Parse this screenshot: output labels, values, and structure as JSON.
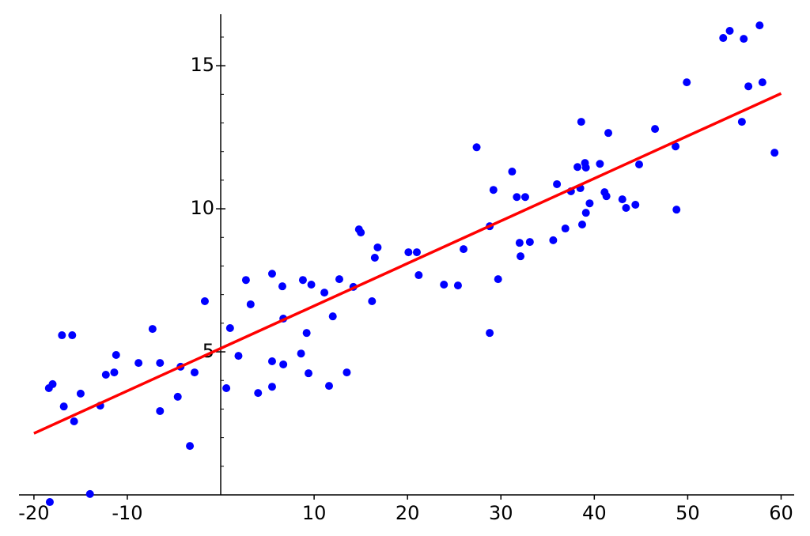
{
  "chart_data": {
    "type": "scatter",
    "xlim": [
      -21.6,
      61.4
    ],
    "ylim": [
      -0.6,
      16.8
    ],
    "xticks": [
      -20,
      -10,
      10,
      20,
      30,
      40,
      50,
      60
    ],
    "yticks": [
      5,
      10,
      15
    ],
    "y_minor_ticks": [
      1,
      2,
      3,
      4,
      6,
      7,
      8,
      9,
      11,
      12,
      13,
      14,
      16
    ],
    "points": {
      "color": "#0000ff",
      "x": [
        -18.4,
        -18.0,
        -17.0,
        -16.8,
        -15.9,
        -15.7,
        -15.0,
        -18.3,
        -14.0,
        -12.9,
        -12.3,
        -11.4,
        -11.2,
        -8.8,
        -7.3,
        -6.5,
        -6.5,
        -4.6,
        -4.3,
        -3.3,
        -2.8,
        -1.7,
        0.6,
        1.0,
        1.9,
        2.7,
        3.2,
        4.0,
        5.5,
        5.5,
        5.5,
        6.6,
        6.7,
        6.7,
        8.8,
        8.6,
        9.2,
        9.4,
        9.7,
        11.1,
        11.6,
        12.0,
        12.7,
        13.5,
        14.2,
        14.8,
        15.0,
        16.2,
        16.5,
        16.8,
        20.1,
        21.0,
        21.2,
        23.9,
        25.4,
        26.0,
        27.4,
        28.8,
        28.8,
        29.2,
        29.7,
        31.2,
        31.7,
        32.0,
        32.1,
        32.6,
        33.1,
        35.6,
        36.0,
        36.9,
        37.5,
        38.2,
        38.5,
        38.6,
        38.7,
        39.0,
        39.1,
        39.1,
        39.5,
        40.6,
        41.1,
        41.3,
        41.5,
        43.0,
        43.4,
        44.4,
        44.8,
        46.5,
        48.7,
        48.8,
        49.9,
        53.8,
        54.5,
        55.8,
        56.0,
        56.5,
        57.7,
        58.0,
        59.3
      ],
      "y": [
        3.73,
        3.87,
        5.58,
        3.09,
        5.58,
        2.57,
        3.54,
        -0.25,
        0.03,
        3.12,
        4.2,
        4.28,
        4.89,
        4.61,
        5.8,
        4.61,
        2.93,
        3.43,
        4.48,
        1.71,
        4.28,
        6.77,
        3.73,
        5.83,
        4.86,
        7.51,
        6.66,
        3.56,
        7.73,
        4.67,
        3.78,
        7.29,
        6.16,
        4.56,
        7.51,
        4.94,
        5.66,
        4.25,
        7.35,
        7.07,
        3.81,
        6.24,
        7.54,
        4.28,
        7.27,
        9.28,
        9.17,
        6.77,
        8.29,
        8.65,
        8.48,
        8.48,
        7.68,
        7.35,
        7.32,
        8.59,
        12.15,
        9.39,
        5.66,
        10.66,
        7.54,
        11.3,
        10.41,
        8.81,
        8.34,
        10.41,
        8.84,
        8.9,
        10.86,
        9.31,
        10.61,
        11.46,
        10.72,
        13.04,
        9.45,
        11.6,
        11.44,
        9.86,
        10.19,
        11.57,
        10.58,
        10.44,
        12.65,
        10.33,
        10.03,
        10.14,
        11.55,
        12.79,
        12.18,
        9.97,
        14.42,
        15.97,
        16.22,
        13.04,
        15.94,
        14.28,
        16.41,
        14.42,
        11.96
      ]
    },
    "fit_line": {
      "color": "#ff0000",
      "x": [
        -20,
        60
      ],
      "y": [
        2.15,
        14.03
      ]
    }
  }
}
